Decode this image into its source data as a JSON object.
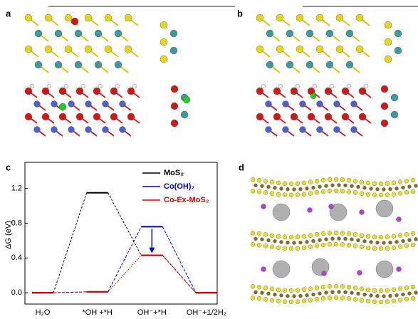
{
  "panel_labels": [
    "a",
    "b",
    "c",
    "d"
  ],
  "chart_data": {
    "type": "energy",
    "ylabel": "ΔG (eV)",
    "categories": [
      "H₂O",
      "*OH +*H",
      "OH⁻+*H",
      "OH⁻+1/2H₂"
    ],
    "series": [
      {
        "name": "MoS₂",
        "color": "#000000",
        "values": [
          0,
          1.15,
          0.43,
          0
        ]
      },
      {
        "name": "Co(OH)₂",
        "color": "#0000cc",
        "values": [
          0,
          0.01,
          0.76,
          0
        ]
      },
      {
        "name": "Co-Ex-MoS₂",
        "color": "#e00000",
        "values": [
          0,
          0.01,
          0.43,
          0
        ]
      }
    ],
    "ylim": [
      -0.13,
      1.5
    ],
    "yticks": [
      {
        "value": 0,
        "label": "0.0"
      },
      0.4,
      0.8,
      1.2
    ]
  }
}
